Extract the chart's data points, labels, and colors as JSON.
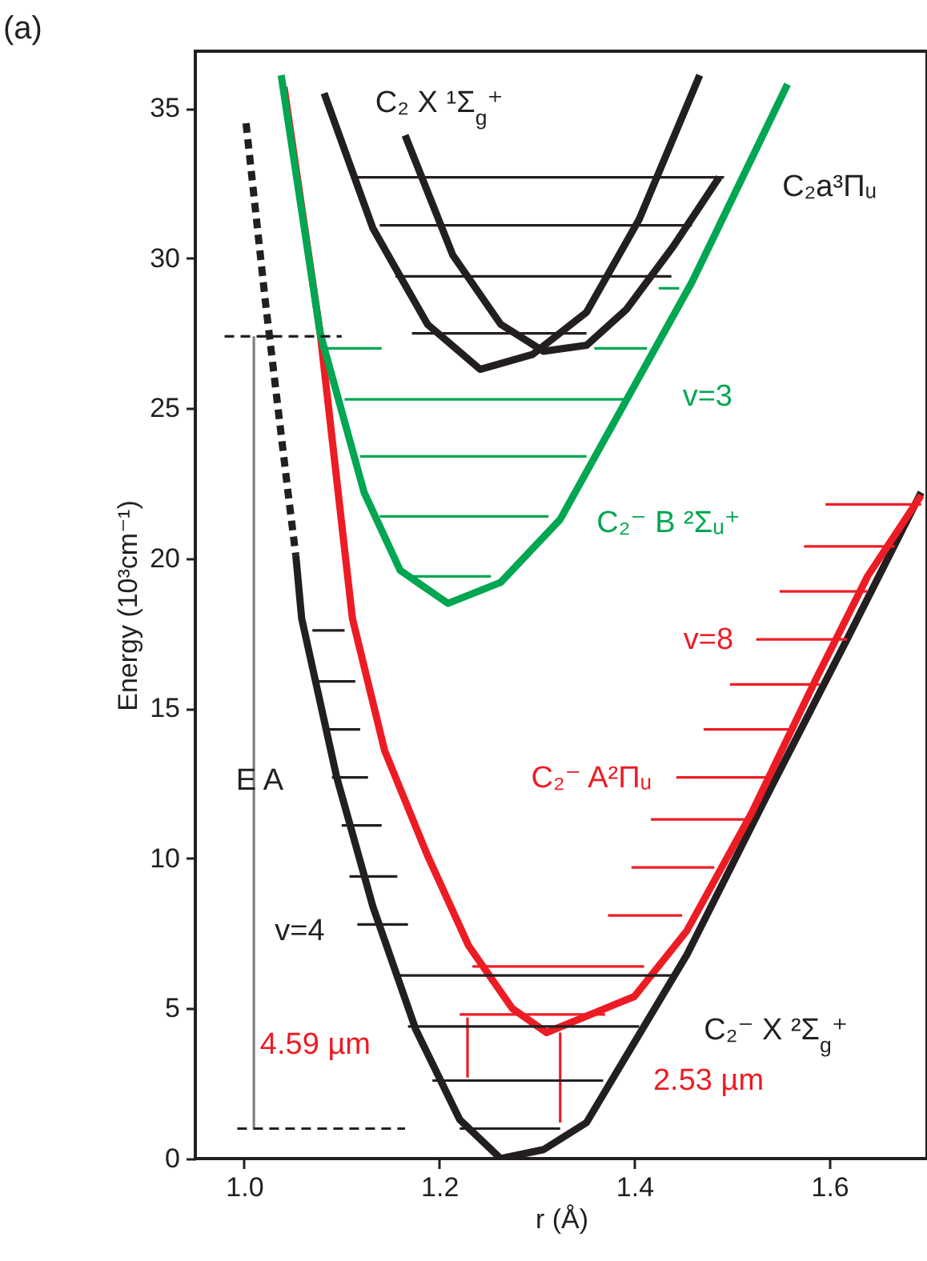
{
  "chart_data": {
    "type": "line",
    "title": "(a)",
    "xlabel": "r (Å)",
    "ylabel": "Energy (10³cm⁻¹)",
    "xlim": [
      0.95,
      1.7
    ],
    "ylim": [
      0,
      36.9
    ],
    "xticks": [
      {
        "value": 1.0,
        "label": "1.0"
      },
      {
        "value": 1.2,
        "label": "1.2"
      },
      {
        "value": 1.4,
        "label": "1.4"
      },
      {
        "value": 1.6,
        "label": "1.6"
      }
    ],
    "yticks": [
      0,
      5,
      10,
      15,
      20,
      25,
      30,
      35
    ],
    "series": [
      {
        "color": "#231f20",
        "x": [
          1.053,
          1.059,
          1.095,
          1.132,
          1.176,
          1.221,
          1.263,
          1.307,
          1.351,
          1.373,
          1.454,
          1.536,
          1.618,
          1.694
        ],
        "values": [
          20.1,
          18.0,
          12.7,
          8.4,
          4.3,
          1.3,
          0,
          0.3,
          1.2,
          2.4,
          6.8,
          12.1,
          17.3,
          22.2
        ]
      },
      {
        "color": "#231f20",
        "line_style": "dashed",
        "x": [
          1.002,
          1.022,
          1.045,
          1.053
        ],
        "values": [
          34.5,
          28.5,
          22.2,
          20.1
        ]
      },
      {
        "color": "#ed1c24",
        "x": [
          1.041,
          1.078,
          1.111,
          1.144,
          1.188,
          1.23,
          1.275,
          1.31,
          1.4,
          1.454,
          1.52,
          1.585,
          1.639,
          1.694
        ],
        "values": [
          35.7,
          27.5,
          18.0,
          13.6,
          10.1,
          7.1,
          5.0,
          4.2,
          5.4,
          7.6,
          11.5,
          15.9,
          19.4,
          22.1
        ]
      },
      {
        "color": "#00a651",
        "x": [
          1.038,
          1.078,
          1.123,
          1.16,
          1.209,
          1.263,
          1.324,
          1.394,
          1.459,
          1.557
        ],
        "values": [
          36.1,
          27.5,
          22.2,
          19.6,
          18.5,
          19.2,
          21.3,
          25.4,
          29.2,
          35.8
        ]
      },
      {
        "color": "#231f20",
        "x": [
          1.082,
          1.132,
          1.188,
          1.242,
          1.296,
          1.351,
          1.405,
          1.467
        ],
        "values": [
          35.5,
          31.0,
          27.8,
          26.3,
          26.8,
          28.2,
          31.3,
          36.1
        ]
      },
      {
        "color": "#231f20",
        "x": [
          1.165,
          1.214,
          1.263,
          1.307,
          1.351,
          1.392,
          1.44,
          1.487
        ],
        "values": [
          34.1,
          30.1,
          27.8,
          26.9,
          27.1,
          28.3,
          30.4,
          32.7
        ]
      },
      {
        "color": "#7f7f7f",
        "x": [
          1.01,
          1.01
        ],
        "values": [
          1.0,
          27.4
        ]
      },
      {
        "color": "#ed1c24",
        "x": [
          1.229,
          1.229
        ],
        "values": [
          4.7,
          2.7
        ]
      },
      {
        "color": "#ed1c24",
        "x": [
          1.324,
          1.324
        ],
        "values": [
          4.2,
          1.2
        ]
      },
      {
        "color": "#231f20",
        "line_style": "dashed",
        "x": [
          0.98,
          1.1
        ],
        "values": [
          27.4,
          27.4
        ]
      },
      {
        "color": "#231f20",
        "line_style": "dashed",
        "x": [
          0.993,
          1.165
        ],
        "values": [
          1.0,
          1.0
        ]
      },
      {
        "color": "#231f20",
        "x": [
          1.221,
          1.324
        ],
        "values": [
          1.0,
          1.0
        ]
      },
      {
        "color": "#231f20",
        "x": [
          1.193,
          1.368
        ],
        "values": [
          2.6,
          2.6
        ]
      },
      {
        "color": "#231f20",
        "x": [
          1.168,
          1.405
        ],
        "values": [
          4.4,
          4.4
        ]
      },
      {
        "color": "#231f20",
        "x": [
          1.155,
          1.443
        ],
        "values": [
          6.1,
          6.1
        ]
      },
      {
        "color": "#231f20",
        "x": [
          1.116,
          1.168
        ],
        "values": [
          7.8,
          7.8
        ]
      },
      {
        "color": "#231f20",
        "x": [
          1.108,
          1.157
        ],
        "values": [
          9.4,
          9.4
        ]
      },
      {
        "color": "#231f20",
        "x": [
          1.1,
          1.141
        ],
        "values": [
          11.1,
          11.1
        ]
      },
      {
        "color": "#231f20",
        "x": [
          1.09,
          1.127
        ],
        "values": [
          12.7,
          12.7
        ]
      },
      {
        "color": "#231f20",
        "x": [
          1.083,
          1.119
        ],
        "values": [
          14.3,
          14.3
        ]
      },
      {
        "color": "#231f20",
        "x": [
          1.075,
          1.114
        ],
        "values": [
          15.9,
          15.9
        ]
      },
      {
        "color": "#231f20",
        "x": [
          1.07,
          1.103
        ],
        "values": [
          17.6,
          17.6
        ]
      },
      {
        "color": "#ed1c24",
        "x": [
          1.221,
          1.37
        ],
        "values": [
          4.8,
          4.8
        ]
      },
      {
        "color": "#ed1c24",
        "x": [
          1.234,
          1.41
        ],
        "values": [
          6.4,
          6.4
        ]
      },
      {
        "color": "#ed1c24",
        "x": [
          1.373,
          1.449
        ],
        "values": [
          8.1,
          8.1
        ]
      },
      {
        "color": "#ed1c24",
        "x": [
          1.397,
          1.482
        ],
        "values": [
          9.7,
          9.7
        ]
      },
      {
        "color": "#ed1c24",
        "x": [
          1.417,
          1.515
        ],
        "values": [
          11.3,
          11.3
        ]
      },
      {
        "color": "#ed1c24",
        "x": [
          1.443,
          1.536
        ],
        "values": [
          12.7,
          12.7
        ]
      },
      {
        "color": "#ed1c24",
        "x": [
          1.471,
          1.564
        ],
        "values": [
          14.3,
          14.3
        ]
      },
      {
        "color": "#ed1c24",
        "x": [
          1.498,
          1.59
        ],
        "values": [
          15.8,
          15.8
        ]
      },
      {
        "color": "#ed1c24",
        "x": [
          1.525,
          1.618
        ],
        "values": [
          17.3,
          17.3
        ]
      },
      {
        "color": "#ed1c24",
        "x": [
          1.549,
          1.639
        ],
        "values": [
          18.9,
          18.9
        ]
      },
      {
        "color": "#ed1c24",
        "x": [
          1.574,
          1.667
        ],
        "values": [
          20.4,
          20.4
        ]
      },
      {
        "color": "#ed1c24",
        "x": [
          1.596,
          1.694
        ],
        "values": [
          21.8,
          21.8
        ]
      },
      {
        "color": "#00a651",
        "x": [
          1.172,
          1.253
        ],
        "values": [
          19.4,
          19.4
        ]
      },
      {
        "color": "#00a651",
        "x": [
          1.139,
          1.312
        ],
        "values": [
          21.4,
          21.4
        ]
      },
      {
        "color": "#00a651",
        "x": [
          1.119,
          1.351
        ],
        "values": [
          23.4,
          23.4
        ]
      },
      {
        "color": "#00a651",
        "x": [
          1.103,
          1.389
        ],
        "values": [
          25.3,
          25.3
        ]
      },
      {
        "color": "#00a651",
        "x": [
          1.078,
          1.141
        ],
        "values": [
          27.0,
          27.0
        ]
      },
      {
        "color": "#00a651",
        "x": [
          1.359,
          1.413
        ],
        "values": [
          27.0,
          27.0
        ]
      },
      {
        "color": "#00a651",
        "x": [
          1.425,
          1.446
        ],
        "values": [
          29.0,
          29.0
        ]
      },
      {
        "color": "#231f20",
        "x": [
          1.116,
          1.492
        ],
        "values": [
          32.7,
          32.7
        ]
      },
      {
        "color": "#231f20",
        "x": [
          1.139,
          1.459
        ],
        "values": [
          31.1,
          31.1
        ]
      },
      {
        "color": "#231f20",
        "x": [
          1.155,
          1.438
        ],
        "values": [
          29.4,
          29.4
        ]
      },
      {
        "color": "#231f20",
        "x": [
          1.172,
          1.351
        ],
        "values": [
          27.5,
          27.5
        ]
      }
    ],
    "annotations": [
      "C₂ X ¹Σ$_{g}$⁺",
      "C₂a³Πᵤ",
      "v=3",
      "C₂⁻ B ²Σᵤ⁺",
      "v=8",
      "C₂⁻ A²Πᵤ",
      "C₂⁻ X ²Σ$_{g}$⁺",
      "2.53 µm",
      "4.59 µm",
      "v=4",
      "E A"
    ]
  }
}
